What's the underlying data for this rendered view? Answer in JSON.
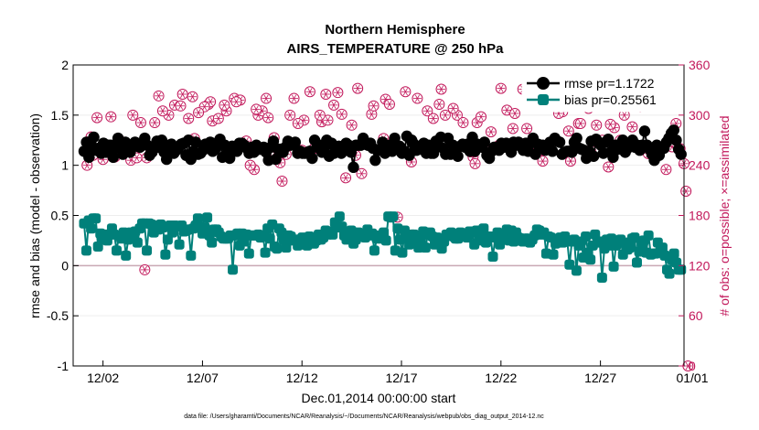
{
  "chart_data": {
    "type": "line",
    "title": "Northern Hemisphere",
    "subtitle": "AIRS_TEMPERATURE @ 250 hPa",
    "xlabel": "Dec.01,2014 00:00:00 start",
    "ylabel": "rmse and bias (model - observation)",
    "y2label": "# of obs: o=possible; ×=assimilated",
    "footnote": "data file: /Users/gharamti/Documents/NCAR/Reanalysis/~/Documents/NCAR/Reanalysis/webpub/obs_diag_output_2014-12.nc",
    "xlim": [
      0.5,
      31.2
    ],
    "ylim": [
      -1,
      2
    ],
    "y2lim": [
      0,
      360
    ],
    "x_ticks": [
      2,
      7,
      12,
      17,
      22,
      27,
      32
    ],
    "x_tick_labels": [
      "12/02",
      "12/07",
      "12/12",
      "12/17",
      "12/22",
      "12/27",
      "01/01"
    ],
    "y_ticks": [
      -1,
      -0.5,
      0,
      0.5,
      1,
      1.5,
      2
    ],
    "y_tick_labels": [
      "-1",
      "-0.5",
      "0",
      "0.5",
      "1",
      "1.5",
      "2"
    ],
    "y2_ticks": [
      0,
      60,
      120,
      180,
      240,
      300,
      360
    ],
    "y2_tick_labels": [
      "0",
      "60",
      "120",
      "180",
      "240",
      "300",
      "360"
    ],
    "legend_position": "top-right",
    "colors": {
      "rmse": "#000000",
      "bias": "#00807a",
      "obs": "#c2185b",
      "zero": "#c9a8b4"
    },
    "series": [
      {
        "name": "rmse pr=1.1722",
        "key": "rmse",
        "values": [
          1.14,
          1.23,
          1.08,
          1.2,
          1.28,
          1.15,
          1.17,
          1.12,
          1.22,
          1.13,
          1.2,
          1.2,
          1.08,
          1.17,
          1.27,
          1.18,
          1.11,
          1.23,
          1.16,
          1.13,
          1.2,
          1.23,
          1.19,
          1.18,
          1.22,
          1.27,
          1.2,
          1.1,
          1.13,
          1.17,
          1.24,
          1.18,
          1.25,
          1.13,
          1.06,
          1.2,
          1.21,
          1.12,
          1.15,
          1.18,
          1.21,
          1.22,
          1.1,
          1.25,
          1.06,
          1.14,
          1.23,
          1.11,
          1.12,
          1.15,
          1.21,
          1.19,
          1.23,
          1.14,
          1.16,
          1.21,
          1.26,
          1.08,
          1.2,
          1.12,
          1.07,
          1.19,
          1.17,
          1.14,
          1.22,
          1.22,
          1.2,
          1.17,
          1.12,
          1.18,
          1.13,
          1.2,
          1.16,
          1.16,
          1.18,
          1.13,
          1.05,
          1.18,
          1.24,
          1.06,
          1.16,
          1.16,
          1.13,
          1.18,
          1.24,
          1.2,
          1.21,
          1.23,
          1.12,
          1.14,
          1.12,
          1.12,
          1.13,
          1.14,
          1.07,
          1.25,
          1.18,
          1.2,
          1.13,
          1.18,
          1.25,
          1.09,
          1.22,
          1.12,
          1.14,
          1.19,
          1.12,
          1.16,
          1.22,
          1.2,
          1.13,
          0.98,
          1.2,
          1.2,
          1.2,
          1.27,
          1.21,
          1.2,
          1.22,
          1.17,
          1.05,
          1.15,
          1.15,
          1.23,
          1.12,
          1.15,
          1.2,
          1.14,
          1.27,
          1.17,
          1.19,
          1.12,
          1.14,
          1.29,
          1.1,
          1.25,
          1.21,
          1.15,
          1.16,
          1.17,
          1.22,
          1.12,
          1.2,
          1.12,
          1.12,
          1.24,
          1.19,
          1.28,
          1.17,
          1.11,
          1.27,
          1.11,
          1.2,
          1.16,
          1.09,
          1.19,
          1.21,
          1.18,
          1.21,
          1.14,
          1.28,
          1.14,
          1.21,
          1.2,
          1.18,
          1.23,
          1.1,
          1.07,
          1.14,
          1.18,
          1.17,
          1.15,
          1.22,
          1.18,
          1.22,
          1.2,
          1.13,
          1.23,
          1.2,
          1.23,
          1.21,
          1.15,
          1.22,
          1.14,
          1.22,
          1.27,
          1.11,
          1.21,
          1.17,
          1.2,
          1.15,
          1.16,
          1.23,
          1.14,
          1.27,
          1.24,
          1.23,
          1.11,
          1.13,
          1.14,
          1.14,
          1.13,
          1.23,
          1.27,
          1.17,
          1.16,
          1.15,
          1.07,
          1.14,
          1.24,
          1.09,
          1.26,
          1.23,
          1.2,
          1.12,
          1.23,
          1.26,
          1.13,
          1.08,
          1.2,
          1.16,
          1.21,
          1.25,
          1.13,
          1.17,
          1.2,
          1.25,
          1.18,
          1.2,
          1.15,
          1.2,
          1.34,
          1.2,
          1.16,
          1.11,
          1.05,
          1.2,
          1.1,
          1.16,
          1.17,
          1.23,
          1.27,
          1.32,
          1.35,
          1.25,
          1.16,
          1.11
        ]
      },
      {
        "name": "bias pr=0.25561",
        "key": "bias",
        "values": [
          0.42,
          0.15,
          0.45,
          0.37,
          0.47,
          0.47,
          0.19,
          0.32,
          0.28,
          0.31,
          0.25,
          0.31,
          0.37,
          0.31,
          0.15,
          0.3,
          0.27,
          0.33,
          0.1,
          0.26,
          0.33,
          0.31,
          0.34,
          0.23,
          0.37,
          0.42,
          0.42,
          0.15,
          0.42,
          0.41,
          0.33,
          0.4,
          0.36,
          0.41,
          0.38,
          0.11,
          0.26,
          0.4,
          0.33,
          0.4,
          0.39,
          0.21,
          0.4,
          0.34,
          0.35,
          0.36,
          0.1,
          0.37,
          0.4,
          0.47,
          0.39,
          0.32,
          0.38,
          0.48,
          0.3,
          0.23,
          0.36,
          0.36,
          0.33,
          0.29,
          0.27,
          0.27,
          0.27,
          0.3,
          -0.04,
          0.3,
          0.32,
          0.2,
          0.32,
          0.24,
          0.31,
          0.12,
          0.3,
          0.3,
          0.3,
          0.31,
          0.28,
          0.3,
          0.13,
          0.37,
          0.27,
          0.41,
          0.19,
          0.17,
          0.37,
          0.33,
          0.26,
          0.18,
          0.3,
          0.29,
          0.25,
          0.26,
          0.2,
          0.21,
          0.28,
          0.27,
          0.2,
          0.29,
          0.27,
          0.22,
          0.25,
          0.31,
          0.26,
          0.28,
          0.35,
          0.31,
          0.34,
          0.31,
          0.43,
          0.38,
          0.49,
          0.39,
          0.3,
          0.26,
          0.29,
          0.35,
          0.22,
          0.26,
          0.33,
          0.31,
          0.31,
          0.28,
          0.36,
          0.3,
          0.32,
          0.15,
          0.27,
          0.3,
          0.27,
          0.33,
          0.25,
          0.49,
          0.48,
          0.49,
          0.15,
          0.37,
          0.26,
          0.13,
          0.35,
          0.29,
          0.21,
          0.31,
          0.31,
          0.22,
          0.18,
          0.27,
          0.34,
          0.18,
          0.31,
          0.33,
          0.29,
          0.21,
          0.28,
          0.27,
          0.17,
          0.24,
          0.31,
          0.31,
          0.33,
          0.29,
          0.27,
          0.27,
          0.33,
          0.31,
          0.32,
          0.28,
          0.34,
          0.33,
          0.21,
          0.35,
          0.25,
          0.3,
          0.37,
          0.23,
          0.28,
          0.29,
          0.09,
          0.28,
          0.33,
          0.21,
          0.27,
          0.32,
          0.36,
          0.25,
          0.35,
          0.24,
          0.33,
          0.28,
          0.27,
          0.24,
          0.27,
          0.27,
          0.23,
          0.26,
          0.3,
          0.36,
          0.35,
          0.31,
          0.33,
          0.12,
          0.29,
          0.28,
          0.11,
          0.22,
          0.25,
          0.28,
          0.23,
          0.29,
          0.25,
          0.01,
          0.24,
          0.26,
          -0.05,
          0.2,
          0.24,
          0.08,
          0.29,
          0.13,
          0.06,
          0.2,
          0.31,
          0.23,
          0.24,
          -0.12,
          0.17,
          0.26,
          0.2,
          0.27,
          -0.01,
          0.2,
          0.25,
          0.26,
          0.11,
          0.23,
          0.16,
          0.18,
          0.27,
          0.28,
          0.03,
          0.14,
          0.22,
          0.25,
          0.13,
          0.3,
          0.11,
          0.12,
          0.12,
          0.23,
          0.14,
          0.18,
          0.1,
          -0.04,
          -0.08,
          0.06,
          0.12,
          0.03,
          -0.04,
          -0.04
        ]
      },
      {
        "name": "# of obs (possible / assimilated)",
        "key": "obs",
        "points": [
          [
            1.2,
            240
          ],
          [
            1.5,
            252
          ],
          [
            1.7,
            297
          ],
          [
            2.0,
            247
          ],
          [
            2.4,
            298
          ],
          [
            3.0,
            262
          ],
          [
            3.4,
            246
          ],
          [
            3.7,
            249
          ],
          [
            4.1,
            115
          ],
          [
            4.2,
            249
          ],
          [
            4.8,
            323
          ],
          [
            5.6,
            312
          ],
          [
            6.0,
            325
          ],
          [
            6.5,
            322
          ],
          [
            7.3,
            313
          ],
          [
            7.5,
            293
          ],
          [
            8.2,
            305
          ],
          [
            8.6,
            320
          ],
          [
            8.9,
            318
          ],
          [
            9.2,
            269
          ],
          [
            9.8,
            300
          ],
          [
            10.0,
            305
          ],
          [
            10.3,
            297
          ],
          [
            10.5,
            250
          ],
          [
            11.0,
            221
          ],
          [
            11.2,
            253
          ],
          [
            11.6,
            320
          ],
          [
            12.1,
            294
          ],
          [
            12.6,
            260
          ],
          [
            13.0,
            292
          ],
          [
            13.3,
            294
          ],
          [
            13.6,
            312
          ],
          [
            14.2,
            225
          ],
          [
            14.7,
            252
          ],
          [
            15.0,
            230
          ],
          [
            15.5,
            301
          ],
          [
            15.9,
            258
          ],
          [
            16.2,
            319
          ],
          [
            16.7,
            264
          ],
          [
            17.1,
            256
          ],
          [
            17.5,
            244
          ],
          [
            18.3,
            305
          ],
          [
            18.9,
            313
          ],
          [
            19.2,
            300
          ],
          [
            19.8,
            300
          ],
          [
            20.1,
            291
          ],
          [
            20.6,
            250
          ],
          [
            20.8,
            291
          ],
          [
            21.0,
            298
          ],
          [
            21.5,
            280
          ],
          [
            21.9,
            264
          ],
          [
            22.3,
            306
          ],
          [
            22.7,
            302
          ],
          [
            23.3,
            284
          ],
          [
            23.7,
            260
          ],
          [
            24.1,
            245
          ],
          [
            24.6,
            322
          ],
          [
            25.1,
            304
          ],
          [
            25.4,
            281
          ],
          [
            25.9,
            290
          ],
          [
            26.4,
            308
          ],
          [
            26.8,
            288
          ],
          [
            27.1,
            270
          ],
          [
            27.4,
            238
          ],
          [
            27.7,
            285
          ],
          [
            28.2,
            300
          ],
          [
            28.6,
            286
          ],
          [
            29.0,
            310
          ],
          [
            29.4,
            254
          ],
          [
            29.8,
            320
          ],
          [
            30.3,
            235
          ],
          [
            30.6,
            262
          ],
          [
            30.8,
            290
          ],
          [
            31.3,
            209
          ],
          [
            31.2,
            242
          ],
          [
            31.0,
            260
          ],
          [
            29.5,
            328
          ],
          [
            29.0,
            318
          ],
          [
            28.7,
            326
          ],
          [
            28.0,
            270
          ],
          [
            27.5,
            289
          ],
          [
            26.5,
            258
          ],
          [
            26.0,
            290
          ],
          [
            25.5,
            245
          ],
          [
            24.9,
            302
          ],
          [
            24.0,
            258
          ],
          [
            23.6,
            325
          ],
          [
            23.1,
            331
          ],
          [
            22.6,
            284
          ],
          [
            22.0,
            332
          ],
          [
            21.3,
            257
          ],
          [
            20.7,
            242
          ],
          [
            19.6,
            308
          ],
          [
            19.0,
            331
          ],
          [
            18.6,
            296
          ],
          [
            17.8,
            320
          ],
          [
            17.2,
            328
          ],
          [
            16.8,
            178
          ],
          [
            16.4,
            313
          ],
          [
            16.1,
            272
          ],
          [
            15.6,
            311
          ],
          [
            15.2,
            265
          ],
          [
            14.8,
            332
          ],
          [
            14.5,
            288
          ],
          [
            14.0,
            301
          ],
          [
            13.8,
            327
          ],
          [
            13.2,
            325
          ],
          [
            12.9,
            300
          ],
          [
            12.4,
            328
          ],
          [
            12.0,
            258
          ],
          [
            11.8,
            290
          ],
          [
            11.4,
            300
          ],
          [
            10.9,
            243
          ],
          [
            10.6,
            273
          ],
          [
            10.2,
            320
          ],
          [
            9.7,
            307
          ],
          [
            9.6,
            235
          ],
          [
            9.4,
            240
          ],
          [
            8.7,
            316
          ],
          [
            8.1,
            312
          ],
          [
            7.8,
            296
          ],
          [
            7.4,
            316
          ],
          [
            7.1,
            310
          ],
          [
            6.8,
            303
          ],
          [
            6.6,
            272
          ],
          [
            6.3,
            296
          ],
          [
            5.9,
            311
          ],
          [
            5.3,
            300
          ],
          [
            5.0,
            305
          ],
          [
            4.6,
            291
          ],
          [
            4.4,
            255
          ],
          [
            3.9,
            291
          ],
          [
            3.5,
            300
          ],
          [
            2.8,
            271
          ],
          [
            2.6,
            250
          ],
          [
            1.9,
            260
          ],
          [
            1.4,
            274
          ],
          [
            31.4,
            0
          ]
        ]
      }
    ]
  }
}
